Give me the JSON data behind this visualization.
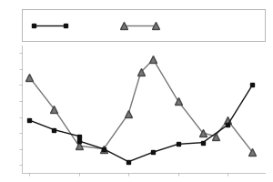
{
  "line1": {
    "x": [
      0,
      1,
      2,
      2,
      3,
      4,
      5,
      6,
      7,
      8,
      9
    ],
    "y": [
      5.8,
      5.2,
      4.8,
      4.5,
      4.0,
      3.2,
      3.8,
      4.3,
      4.4,
      5.5,
      8.0
    ],
    "color": "#111111",
    "marker": "s",
    "markersize": 3.5,
    "linewidth": 1.0
  },
  "line2": {
    "x": [
      0,
      1,
      2,
      3,
      4,
      4.5,
      5,
      6,
      7,
      7.5,
      8,
      9
    ],
    "y": [
      8.5,
      6.5,
      4.2,
      4.0,
      6.2,
      8.8,
      9.6,
      7.0,
      5.0,
      4.8,
      5.8,
      3.8
    ],
    "color": "#777777",
    "marker": "^",
    "markersize": 5.5,
    "linewidth": 1.0
  },
  "legend_box_color": "#ffffff",
  "legend_edge_color": "#aaaaaa",
  "background_color": "#ffffff",
  "figsize": [
    3.0,
    2.0
  ],
  "dpi": 100,
  "ylim": [
    2.5,
    10.5
  ],
  "xlim": [
    -0.3,
    9.5
  ]
}
